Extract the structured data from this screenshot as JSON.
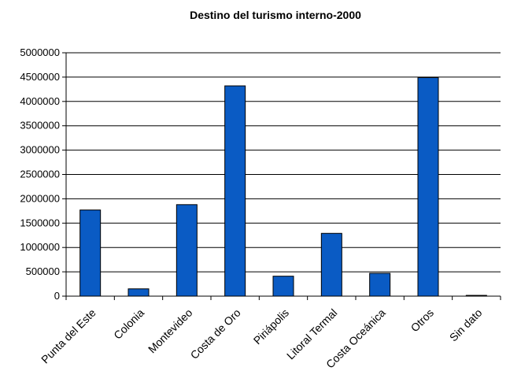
{
  "chart_data": {
    "type": "bar",
    "title": "Destino del turismo interno-2000",
    "categories": [
      "Punta del Este",
      "Colonia",
      "Montevideo",
      "Costa de Oro",
      "Piriápolis",
      "Litoral Termal",
      "Costa Oceánica",
      "Otros",
      "Sin dato"
    ],
    "values": [
      1770000,
      150000,
      1880000,
      4320000,
      410000,
      1290000,
      470000,
      4490000,
      10000
    ],
    "ylim": [
      0,
      5000000
    ],
    "yticks": [
      "0",
      "500000",
      "1000000",
      "1500000",
      "2000000",
      "2500000",
      "3000000",
      "3500000",
      "4000000",
      "4500000",
      "5000000"
    ],
    "grid": true,
    "xlabel": "",
    "ylabel": "",
    "colors": {
      "bar_fill": "#0a5bc4",
      "bar_stroke": "#000000",
      "grid": "#000000"
    }
  }
}
